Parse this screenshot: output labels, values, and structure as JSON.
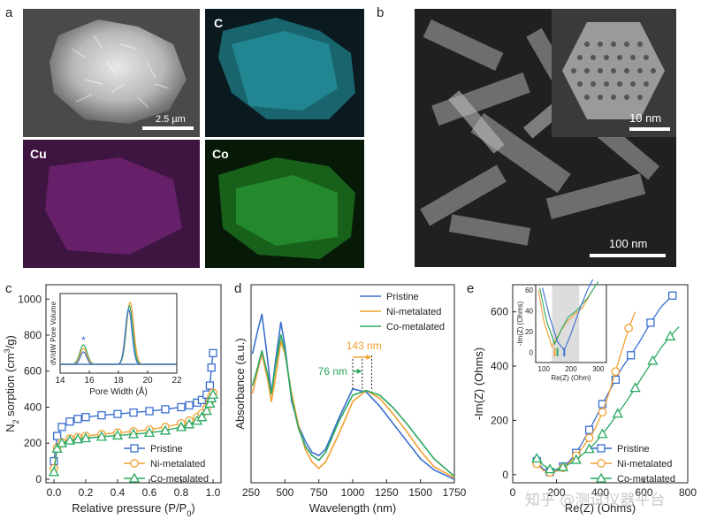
{
  "panels": {
    "a": {
      "label": "a",
      "sem_scale": "2.5 µm",
      "map_labels": [
        "C",
        "Cu",
        "Co"
      ]
    },
    "b": {
      "label": "b",
      "inset_scale": "10 nm",
      "main_scale": "100 nm"
    },
    "c": {
      "label": "c"
    },
    "d": {
      "label": "d"
    },
    "e": {
      "label": "e"
    }
  },
  "colors": {
    "pristine": "#3a6fd0",
    "ni": "#f0a030",
    "co": "#2aa860",
    "carbon": "#2aa8b5",
    "cu": "#c040c8",
    "cobalt": "#30b040"
  },
  "watermark": "知乎 @测试仪器平台",
  "chart_data": [
    {
      "id": "c",
      "type": "line",
      "xlabel": "Relative pressure (P/P",
      "xlabel_sub": "0",
      "xlabel_end": ")",
      "ylabel": "N",
      "ylabel_sub": "2",
      "ylabel_rest": " sorption (cm",
      "ylabel_sup": "3",
      "ylabel_end": "/g)",
      "xlim": [
        -0.05,
        1.05
      ],
      "ylim": [
        -20,
        1080
      ],
      "xticks": [
        "0.0",
        "0.2",
        "0.4",
        "0.6",
        "0.8",
        "1.0"
      ],
      "yticks": [
        "0",
        "200",
        "400",
        "600",
        "800",
        "1000"
      ],
      "legend": [
        "Pristine",
        "Ni-metalated",
        "Co-metalated"
      ],
      "series": [
        {
          "name": "Pristine",
          "x": [
            0.0,
            0.02,
            0.05,
            0.1,
            0.15,
            0.2,
            0.3,
            0.4,
            0.5,
            0.6,
            0.7,
            0.8,
            0.85,
            0.9,
            0.93,
            0.96,
            0.98,
            0.99,
            1.0
          ],
          "y": [
            100,
            240,
            290,
            320,
            335,
            345,
            355,
            362,
            370,
            378,
            388,
            400,
            410,
            425,
            440,
            470,
            520,
            620,
            700
          ]
        },
        {
          "name": "Ni-metalated",
          "x": [
            0.0,
            0.02,
            0.05,
            0.1,
            0.15,
            0.2,
            0.3,
            0.4,
            0.5,
            0.6,
            0.7,
            0.8,
            0.85,
            0.9,
            0.93,
            0.96,
            0.98,
            0.99,
            1.0
          ],
          "y": [
            60,
            175,
            205,
            225,
            233,
            240,
            250,
            258,
            265,
            275,
            290,
            310,
            325,
            345,
            365,
            395,
            430,
            460,
            480
          ]
        },
        {
          "name": "Co-metalated",
          "x": [
            0.0,
            0.02,
            0.05,
            0.1,
            0.15,
            0.2,
            0.3,
            0.4,
            0.5,
            0.6,
            0.7,
            0.8,
            0.85,
            0.9,
            0.93,
            0.96,
            0.98,
            0.99,
            1.0
          ],
          "y": [
            40,
            170,
            200,
            215,
            222,
            228,
            236,
            243,
            250,
            258,
            270,
            290,
            305,
            325,
            345,
            380,
            420,
            450,
            470
          ]
        }
      ],
      "inset": {
        "xlabel": "Pore Width (Å)",
        "ylabel": "dV/dW Pore Volume",
        "xlim": [
          14,
          22
        ],
        "xticks": [
          "14",
          "16",
          "18",
          "20",
          "22"
        ],
        "marker": "*"
      }
    },
    {
      "id": "d",
      "type": "line",
      "xlabel": "Wavelength (nm)",
      "ylabel": "Absorbance (a.u.)",
      "xlim": [
        250,
        1750
      ],
      "xticks": [
        "250",
        "500",
        "750",
        "1000",
        "1250",
        "1500",
        "1750"
      ],
      "legend": [
        "Pristine",
        "Ni-metalated",
        "Co-metalated"
      ],
      "annotations": [
        "143 nm",
        "76 nm"
      ],
      "series": [
        {
          "name": "Pristine",
          "x": [
            260,
            300,
            330,
            370,
            400,
            430,
            470,
            500,
            550,
            600,
            650,
            700,
            750,
            800,
            900,
            1000,
            1100,
            1200,
            1300,
            1400,
            1500,
            1600,
            1750
          ],
          "y": [
            0.8,
            0.95,
            1.05,
            0.78,
            0.55,
            0.75,
            1.0,
            0.85,
            0.5,
            0.35,
            0.25,
            0.18,
            0.16,
            0.2,
            0.4,
            0.58,
            0.56,
            0.47,
            0.36,
            0.25,
            0.14,
            0.07,
            0.01
          ]
        },
        {
          "name": "Ni-metalated",
          "x": [
            260,
            300,
            330,
            370,
            400,
            430,
            470,
            500,
            550,
            600,
            650,
            700,
            750,
            800,
            900,
            1000,
            1100,
            1200,
            1300,
            1400,
            1500,
            1600,
            1750
          ],
          "y": [
            0.55,
            0.7,
            0.8,
            0.65,
            0.5,
            0.65,
            0.88,
            0.8,
            0.55,
            0.35,
            0.2,
            0.12,
            0.08,
            0.12,
            0.3,
            0.5,
            0.57,
            0.52,
            0.42,
            0.31,
            0.19,
            0.09,
            0.02
          ]
        },
        {
          "name": "Co-metalated",
          "x": [
            260,
            300,
            330,
            370,
            400,
            430,
            470,
            500,
            550,
            600,
            650,
            700,
            750,
            800,
            900,
            1000,
            1100,
            1200,
            1300,
            1400,
            1500,
            1600,
            1750
          ],
          "y": [
            0.6,
            0.72,
            0.82,
            0.68,
            0.55,
            0.72,
            0.92,
            0.82,
            0.52,
            0.33,
            0.22,
            0.16,
            0.13,
            0.18,
            0.38,
            0.54,
            0.57,
            0.54,
            0.46,
            0.36,
            0.25,
            0.14,
            0.03
          ]
        }
      ]
    },
    {
      "id": "e",
      "type": "scatter",
      "xlabel": "Re(Z) (Ohms)",
      "ylabel": "-Im(Z) (Ohms)",
      "xlim": [
        0,
        800
      ],
      "ylim": [
        -30,
        700
      ],
      "xticks": [
        "0",
        "200",
        "400",
        "600",
        "800"
      ],
      "yticks": [
        "0",
        "200",
        "400",
        "600"
      ],
      "legend": [
        "Pristine",
        "Ni-metalated",
        "Co-metalated"
      ],
      "series": [
        {
          "name": "Pristine",
          "x": [
            110,
            140,
            170,
            200,
            230,
            260,
            290,
            320,
            350,
            380,
            410,
            440,
            470,
            500,
            540,
            580,
            630,
            680,
            730
          ],
          "y": [
            50,
            20,
            10,
            15,
            30,
            50,
            80,
            120,
            165,
            210,
            260,
            305,
            350,
            395,
            440,
            490,
            560,
            620,
            660
          ]
        },
        {
          "name": "Ni-metalated",
          "x": [
            110,
            140,
            170,
            200,
            230,
            260,
            290,
            320,
            350,
            380,
            410,
            440,
            470,
            500,
            530,
            560
          ],
          "y": [
            40,
            15,
            8,
            12,
            25,
            45,
            70,
            100,
            135,
            175,
            230,
            300,
            380,
            460,
            540,
            600
          ]
        },
        {
          "name": "Co-metalated",
          "x": [
            110,
            140,
            170,
            200,
            230,
            260,
            290,
            320,
            350,
            380,
            410,
            440,
            480,
            520,
            560,
            600,
            640,
            680,
            720,
            760
          ],
          "y": [
            60,
            35,
            20,
            20,
            28,
            40,
            55,
            75,
            95,
            120,
            150,
            180,
            225,
            270,
            320,
            370,
            420,
            470,
            510,
            545
          ]
        }
      ],
      "inset": {
        "xlabel": "Re(Z) (Ohm)",
        "ylabel": "-Im(Z) (Ohms)",
        "xticks": [
          "100",
          "200",
          "300"
        ],
        "yticks": [
          "0",
          "20",
          "40",
          "60"
        ]
      }
    }
  ]
}
